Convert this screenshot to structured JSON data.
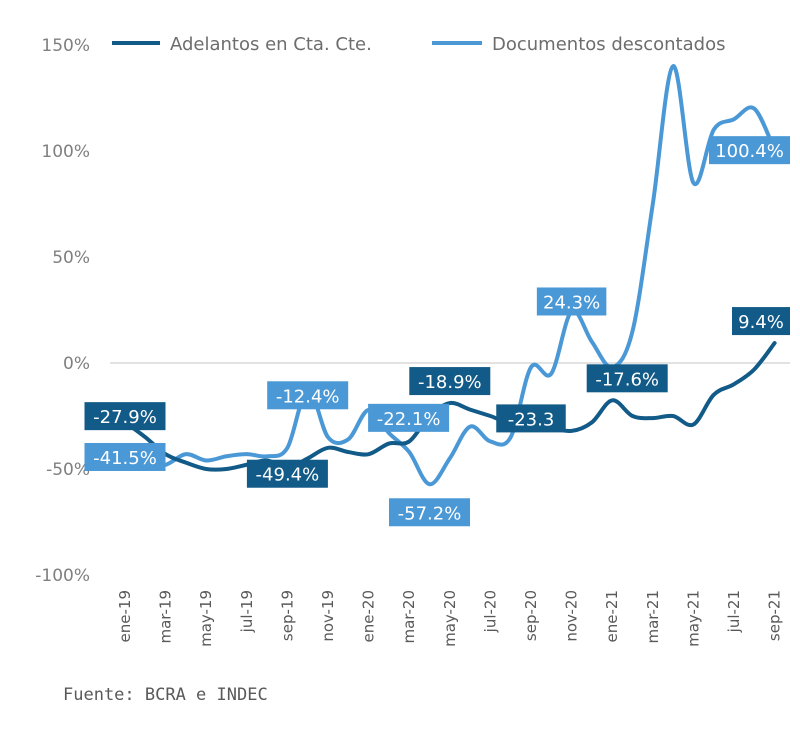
{
  "chart_data": {
    "type": "line",
    "title": "",
    "xlabel": "",
    "ylabel": "",
    "ylim": [
      -100,
      150
    ],
    "yticks": [
      150,
      100,
      50,
      0,
      -50,
      -100
    ],
    "ytick_labels": [
      "150%",
      "100%",
      "50%",
      "0%",
      "-50%",
      "-100%"
    ],
    "x": [
      "ene-19",
      "feb-19",
      "mar-19",
      "abr-19",
      "may-19",
      "jun-19",
      "jul-19",
      "ago-19",
      "sep-19",
      "oct-19",
      "nov-19",
      "dic-19",
      "ene-20",
      "feb-20",
      "mar-20",
      "abr-20",
      "may-20",
      "jun-20",
      "jul-20",
      "ago-20",
      "sep-20",
      "oct-20",
      "nov-20",
      "dic-20",
      "ene-21",
      "feb-21",
      "mar-21",
      "abr-21",
      "may-21",
      "jun-21",
      "jul-21",
      "ago-21",
      "sep-21"
    ],
    "xtick_labels": [
      "ene-19",
      "mar-19",
      "may-19",
      "jul-19",
      "sep-19",
      "nov-19",
      "ene-20",
      "mar-20",
      "may-20",
      "jul-20",
      "sep-20",
      "nov-20",
      "ene-21",
      "mar-21",
      "may-21",
      "jul-21",
      "sep-21"
    ],
    "legend_position": "top",
    "series": [
      {
        "name": "Adelantos en Cta. Cte.",
        "color": "#125a87",
        "values": [
          -27.9,
          -35,
          -43,
          -47,
          -50,
          -50,
          -48,
          -46,
          -49.4,
          -45,
          -40,
          -42,
          -43,
          -38,
          -37,
          -25,
          -18.9,
          -22,
          -25,
          -28,
          -23.3,
          -30,
          -32,
          -28,
          -17.6,
          -25,
          -26,
          -25,
          -29,
          -15,
          -10,
          -3,
          9.4
        ],
        "data_labels": [
          {
            "index": 0,
            "text": "-27.9%"
          },
          {
            "index": 8,
            "text": "-49.4%"
          },
          {
            "index": 16,
            "text": "-18.9%"
          },
          {
            "index": 20,
            "text": "-23.3"
          },
          {
            "index": 24,
            "text": "-17.6%"
          },
          {
            "index": 32,
            "text": "9.4%"
          }
        ]
      },
      {
        "name": "Documentos descontados",
        "color": "#4a98d6",
        "values": [
          -41.5,
          -48,
          -48,
          -43,
          -46,
          -44,
          -43,
          -44,
          -40,
          -12.4,
          -35,
          -36,
          -22.1,
          -33,
          -42,
          -57.2,
          -45,
          -30,
          -37,
          -35,
          -2,
          -5,
          24.3,
          10,
          -2,
          15,
          75,
          140,
          85,
          110,
          115,
          120,
          100.4
        ],
        "data_labels": [
          {
            "index": 0,
            "text": "-41.5%"
          },
          {
            "index": 9,
            "text": "-12.4%"
          },
          {
            "index": 12,
            "text": "-22.1%"
          },
          {
            "index": 15,
            "text": "-57.2%"
          },
          {
            "index": 22,
            "text": "24.3%"
          },
          {
            "index": 32,
            "text": "100.4%"
          }
        ]
      }
    ],
    "grid": "zero-line-only"
  },
  "source": "Fuente: BCRA e INDEC"
}
